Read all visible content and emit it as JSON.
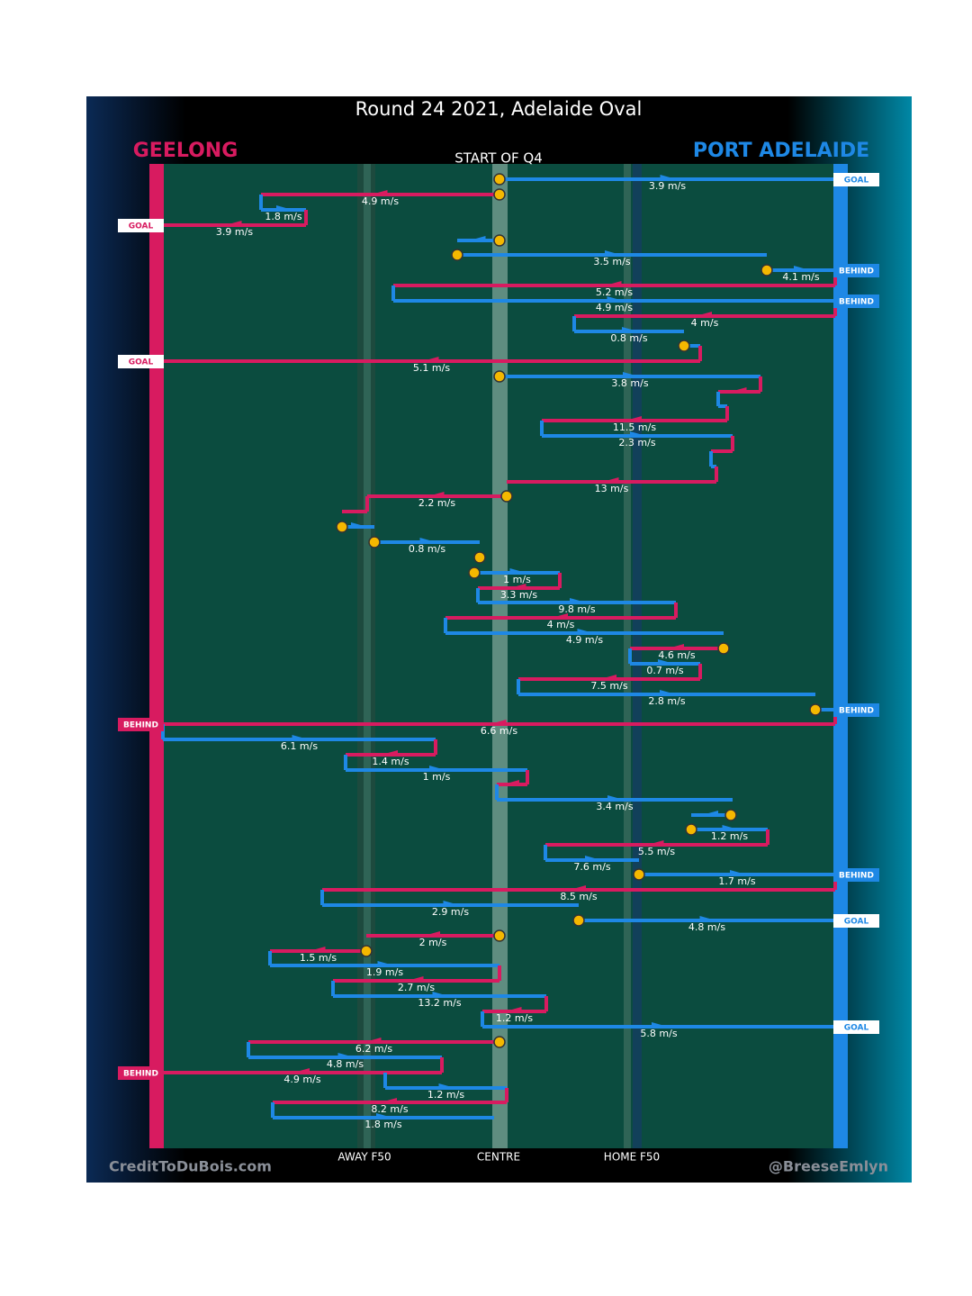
{
  "title": "Round 24 2021, Adelaide Oval",
  "left_team": "GEELONG",
  "right_team": "PORT ADELAIDE",
  "period": "START OF Q4",
  "zones": [
    "AWAY F50",
    "CENTRE",
    "HOME F50"
  ],
  "credits": [
    "CreditToDuBois.com",
    "@BreeseEmlyn"
  ],
  "moves": [
    "3.9 m/s",
    "4.9 m/s",
    "1.8 m/s",
    "3.9 m/s",
    "3.5 m/s",
    "4.1 m/s",
    "5.2 m/s",
    "4.9 m/s",
    "4 m/s",
    "0.8 m/s",
    "5.1 m/s",
    "3.8 m/s",
    "11.5 m/s",
    "2.3 m/s",
    "13 m/s",
    "2.2 m/s",
    "0.8 m/s",
    "1 m/s",
    "3.3 m/s",
    "9.8 m/s",
    "4 m/s",
    "4.9 m/s",
    "4.6 m/s",
    "0.7 m/s",
    "7.5 m/s",
    "2.8 m/s",
    "6.6 m/s",
    "6.1 m/s",
    "1.4 m/s",
    "1 m/s",
    "3.4 m/s",
    "1.2 m/s",
    "5.5 m/s",
    "7.6 m/s",
    "1.7 m/s",
    "8.5 m/s",
    "2.9 m/s",
    "4.8 m/s",
    "2 m/s",
    "1.5 m/s",
    "1.9 m/s",
    "2.7 m/s",
    "13.2 m/s",
    "1.2 m/s",
    "5.8 m/s",
    "6.2 m/s",
    "4.8 m/s",
    "4.9 m/s",
    "1.2 m/s",
    "8.2 m/s",
    "1.8 m/s"
  ],
  "results": [
    "GOAL",
    "GOAL",
    "BEHIND",
    "BEHIND",
    "GOAL",
    "BEHIND",
    "BEHIND",
    "BEHIND",
    "GOAL",
    "GOAL",
    "BEHIND"
  ]
}
